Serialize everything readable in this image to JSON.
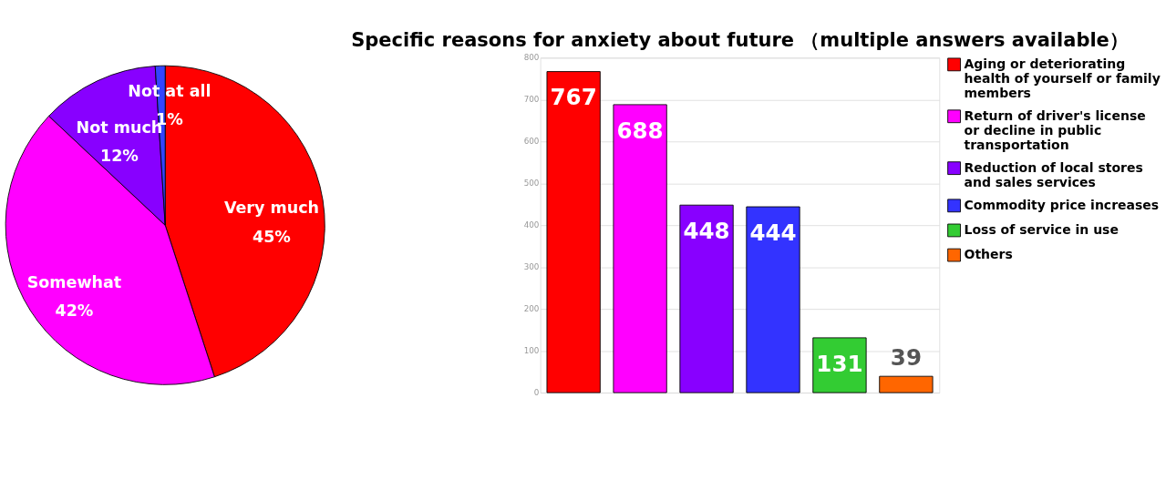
{
  "chart_data": [
    {
      "type": "pie",
      "categories": [
        "Very much",
        "Somewhat",
        "Not much",
        "Not at all"
      ],
      "values": [
        45,
        42,
        12,
        1
      ],
      "colors": [
        "#ff0000",
        "#ff00ff",
        "#8800ff",
        "#3344ff"
      ],
      "value_labels": [
        "45%",
        "42%",
        "12%",
        "1%"
      ]
    },
    {
      "type": "bar",
      "title": "Specific reasons for anxiety about future\n（multiple answers available）",
      "categories": [
        null,
        null,
        null,
        null,
        null,
        null
      ],
      "series": [
        {
          "name": "Aging or deteriorating health of yourself or family members",
          "color": "#ff0000",
          "values": [
            767,
            null,
            null,
            null,
            null,
            null
          ]
        },
        {
          "name": "Return of driver's license or decline in public transportation",
          "color": "#ff00ff",
          "values": [
            null,
            688,
            null,
            null,
            null,
            null
          ]
        },
        {
          "name": "Reduction of local stores and sales services",
          "color": "#8800ff",
          "values": [
            null,
            null,
            448,
            null,
            null,
            null
          ]
        },
        {
          "name": "Commodity price increases",
          "color": "#3333ff",
          "values": [
            null,
            null,
            null,
            444,
            null,
            null
          ]
        },
        {
          "name": "Loss of service in use",
          "color": "#33cc33",
          "values": [
            null,
            null,
            null,
            null,
            131,
            null
          ]
        },
        {
          "name": "Others",
          "color": "#ff6600",
          "values": [
            null,
            null,
            null,
            null,
            null,
            39
          ]
        }
      ],
      "ylim": [
        0,
        800
      ],
      "yticks": [
        0,
        100,
        200,
        300,
        400,
        500,
        600,
        700,
        800
      ],
      "grid": "y",
      "tick_labels": "y",
      "legend": "right",
      "data_labels": true
    }
  ]
}
